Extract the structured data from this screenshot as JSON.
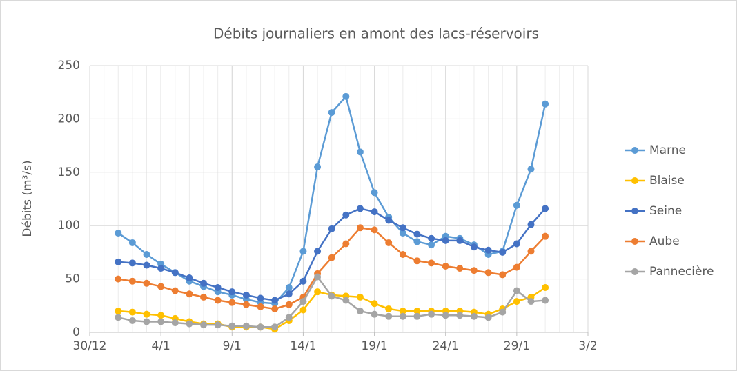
{
  "chart_data": {
    "type": "line",
    "title": "Débits journaliers en amont des lacs-réservoirs",
    "y_label": "Débits (m³/s)",
    "x": [
      2,
      3,
      4,
      5,
      6,
      7,
      8,
      9,
      10,
      11,
      12,
      13,
      14,
      15,
      16,
      17,
      18,
      19,
      20,
      21,
      22,
      23,
      24,
      25,
      26,
      27,
      28,
      29,
      30,
      31,
      32
    ],
    "xlim": [
      0,
      35
    ],
    "xticks": [
      {
        "value": 0,
        "label": "30/12"
      },
      {
        "value": 5,
        "label": "4/1"
      },
      {
        "value": 10,
        "label": "9/1"
      },
      {
        "value": 15,
        "label": "14/1"
      },
      {
        "value": 20,
        "label": "19/1"
      },
      {
        "value": 25,
        "label": "24/1"
      },
      {
        "value": 30,
        "label": "29/1"
      },
      {
        "value": 35,
        "label": "3/2"
      }
    ],
    "ylim": [
      0,
      250
    ],
    "yticks": [
      0,
      50,
      100,
      150,
      200,
      250
    ],
    "grid": true,
    "legend": "right",
    "series": [
      {
        "name": "Marne",
        "color": "#5b9bd5",
        "values": [
          93,
          84,
          73,
          64,
          56,
          48,
          43,
          38,
          35,
          31,
          28,
          27,
          42,
          76,
          155,
          206,
          221,
          169,
          131,
          108,
          93,
          85,
          82,
          90,
          88,
          82,
          73,
          76,
          119,
          153,
          214
        ]
      },
      {
        "name": "Blaise",
        "color": "#ffc000",
        "values": [
          20,
          19,
          17,
          16,
          13,
          10,
          8,
          8,
          5,
          5,
          5,
          3,
          11,
          21,
          38,
          35,
          34,
          33,
          27,
          22,
          20,
          20,
          20,
          20,
          20,
          19,
          17,
          22,
          29,
          33,
          42
        ]
      },
      {
        "name": "Seine",
        "color": "#4472c4",
        "values": [
          66,
          65,
          63,
          60,
          56,
          51,
          46,
          42,
          38,
          35,
          32,
          30,
          36,
          48,
          76,
          97,
          110,
          116,
          113,
          105,
          98,
          92,
          88,
          86,
          86,
          80,
          77,
          75,
          83,
          101,
          116
        ]
      },
      {
        "name": "Aube",
        "color": "#ed7d31",
        "values": [
          50,
          48,
          46,
          43,
          39,
          36,
          33,
          30,
          28,
          26,
          24,
          22,
          26,
          33,
          55,
          70,
          83,
          98,
          96,
          84,
          73,
          67,
          65,
          62,
          60,
          58,
          56,
          54,
          61,
          76,
          90
        ]
      },
      {
        "name": "Pannecière",
        "color": "#a5a5a5",
        "values": [
          14,
          11,
          10,
          10,
          9,
          8,
          7,
          7,
          6,
          6,
          5,
          5,
          14,
          29,
          52,
          34,
          30,
          20,
          17,
          15,
          15,
          15,
          17,
          16,
          16,
          15,
          14,
          19,
          39,
          29,
          30
        ]
      }
    ]
  }
}
